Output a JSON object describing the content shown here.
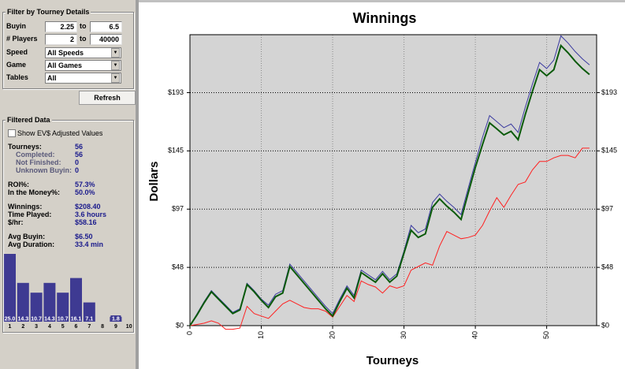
{
  "filter": {
    "title": "Filter by Tourney Details",
    "range_rows": [
      {
        "label": "Buyin",
        "from": "2.25",
        "to_text": "to",
        "to": "6.5"
      },
      {
        "label": "# Players",
        "from": "2",
        "to_text": "to",
        "to": "40000"
      }
    ],
    "select_rows": [
      {
        "label": "Speed",
        "value": "All Speeds"
      },
      {
        "label": "Game",
        "value": "All Games"
      },
      {
        "label": "Tables",
        "value": "All"
      }
    ],
    "refresh": "Refresh"
  },
  "filtered_data": {
    "title": "Filtered Data",
    "checkbox": "Show EV$ Adjusted Values",
    "stats": [
      [
        {
          "label": "Tourneys:",
          "value": "56",
          "sub": [
            {
              "label": "Completed:",
              "value": "56"
            },
            {
              "label": "Not Finished:",
              "value": "0"
            },
            {
              "label": "Unknown Buyin:",
              "value": "0"
            }
          ]
        }
      ],
      [
        {
          "label": "ROI%:",
          "value": "57.3%"
        },
        {
          "label": "In the Money%:",
          "value": "50.0%"
        }
      ],
      [
        {
          "label": "Winnings:",
          "value": "$208.40"
        },
        {
          "label": "Time Played:",
          "value": "3.6 hours"
        },
        {
          "label": "$/hr:",
          "value": "$58.16"
        }
      ],
      [
        {
          "label": "Avg Buyin:",
          "value": "$6.50"
        },
        {
          "label": "Avg Duration:",
          "value": "33.4 min"
        }
      ]
    ]
  },
  "chart_data": [
    {
      "type": "bar",
      "categories": [
        "1",
        "2",
        "3",
        "4",
        "5",
        "6",
        "7",
        "8",
        "9",
        "10"
      ],
      "values": [
        25.0,
        14.3,
        10.7,
        14.3,
        10.7,
        16.1,
        7.1,
        0,
        1.8,
        0
      ],
      "value_labels": [
        "25.0",
        "14.3",
        "10.7",
        "14.3",
        "10.7",
        "16.1",
        "7.1",
        null,
        "1.8",
        null
      ],
      "color": "#3e3a92",
      "ylim": [
        0,
        25
      ]
    },
    {
      "type": "line",
      "title": "Winnings",
      "x_label": "Tourneys",
      "y_label": "Dollars",
      "x": [
        0,
        1,
        2,
        3,
        4,
        5,
        6,
        7,
        8,
        9,
        10,
        11,
        12,
        13,
        14,
        15,
        16,
        17,
        18,
        19,
        20,
        21,
        22,
        23,
        24,
        25,
        26,
        27,
        28,
        29,
        30,
        31,
        32,
        33,
        34,
        35,
        36,
        37,
        38,
        39,
        40,
        41,
        42,
        43,
        44,
        45,
        46,
        47,
        48,
        49,
        50,
        51,
        52,
        53,
        54,
        55,
        56
      ],
      "xlim": [
        0,
        57
      ],
      "xticks": [
        0,
        10,
        20,
        30,
        40,
        50
      ],
      "ylim": [
        0,
        241
      ],
      "yticks": [
        {
          "value": 0,
          "label": "$0"
        },
        {
          "value": 48.25,
          "label": "$48"
        },
        {
          "value": 96.5,
          "label": "$97"
        },
        {
          "value": 144.75,
          "label": "$145"
        },
        {
          "value": 193,
          "label": "$193"
        }
      ],
      "mirror_yticks": true,
      "grid": true,
      "series": [
        {
          "color": "#ff2020",
          "width": 1,
          "values": [
            0,
            1,
            2,
            4,
            2,
            -3,
            -3,
            -2,
            16,
            10,
            8,
            6,
            12,
            18,
            21,
            18,
            15,
            14,
            14,
            12,
            7,
            16,
            25,
            20,
            37,
            34,
            32,
            27,
            33,
            31,
            33,
            46,
            49,
            52,
            50,
            66,
            78,
            75,
            72,
            73,
            75,
            83,
            95,
            106,
            98,
            108,
            117,
            119,
            129,
            136,
            136,
            139,
            141,
            141,
            139,
            147,
            147
          ]
        },
        {
          "color": "#3a3aa0",
          "width": 1,
          "values": [
            0,
            10,
            20,
            29,
            23,
            17,
            11,
            14,
            35,
            29,
            22,
            17,
            26,
            29,
            51,
            44,
            37,
            30,
            23,
            16,
            10,
            22,
            33,
            25,
            46,
            42,
            38,
            45,
            38,
            43,
            62,
            83,
            77,
            80,
            102,
            109,
            103,
            98,
            92,
            114,
            135,
            156,
            174,
            169,
            164,
            167,
            160,
            181,
            200,
            218,
            213,
            220,
            240,
            234,
            227,
            221,
            216
          ]
        },
        {
          "color": "#0a5a0a",
          "width": 2,
          "values": [
            0,
            9,
            19,
            28,
            22,
            16,
            10,
            13,
            34,
            28,
            21,
            15,
            24,
            27,
            49,
            42,
            35,
            28,
            21,
            14,
            8,
            20,
            31,
            23,
            44,
            40,
            36,
            43,
            36,
            41,
            60,
            79,
            73,
            76,
            98,
            105,
            99,
            94,
            88,
            110,
            131,
            150,
            168,
            163,
            158,
            161,
            154,
            175,
            194,
            212,
            207,
            212,
            232,
            226,
            219,
            213,
            208
          ]
        }
      ]
    }
  ]
}
